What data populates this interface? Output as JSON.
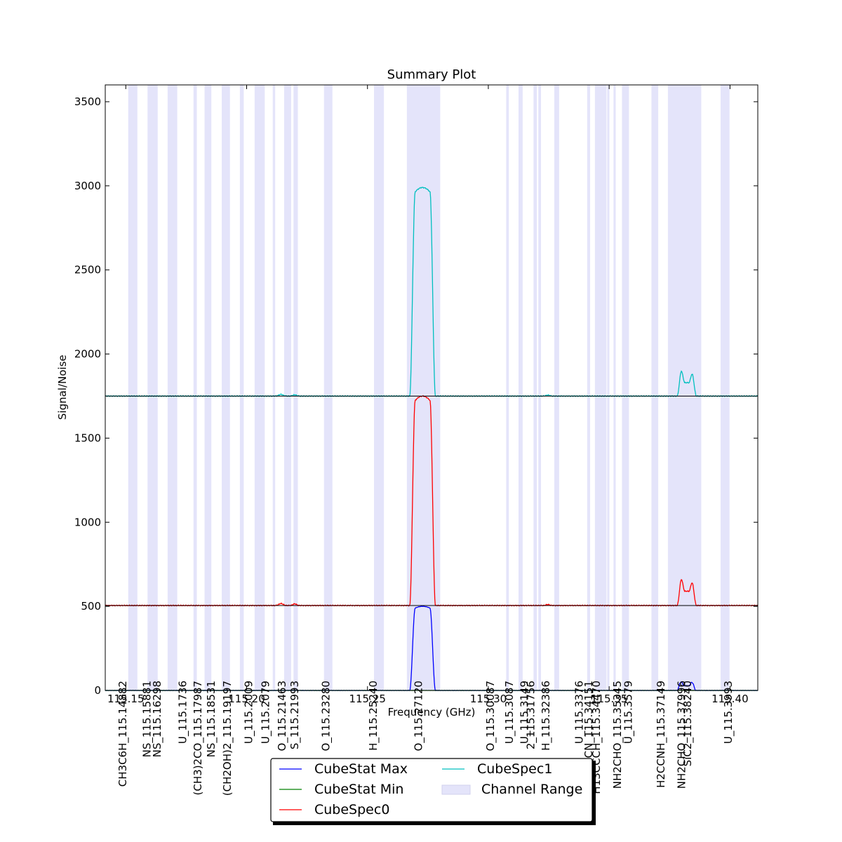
{
  "chart_data": {
    "type": "line",
    "title": "Summary Plot",
    "xlabel": "Frequency (GHz)",
    "ylabel": "Signal/Noise",
    "xlim": [
      115.1415,
      115.4115
    ],
    "ylim": [
      0,
      3600
    ],
    "grid": false,
    "yticks": [
      0,
      500,
      1000,
      1500,
      2000,
      2500,
      3000,
      3500
    ],
    "xticks": [
      {
        "value": 115.15,
        "label": "115.15"
      },
      {
        "value": 115.2,
        "label": "115.20"
      },
      {
        "value": 115.25,
        "label": "115.25"
      },
      {
        "value": 115.3,
        "label": "115.30"
      },
      {
        "value": 115.35,
        "label": "115.35"
      },
      {
        "value": 115.4,
        "label": "115.40"
      }
    ],
    "channel_ranges": [
      [
        115.151,
        115.1548
      ],
      [
        115.159,
        115.1632
      ],
      [
        115.1673,
        115.1713
      ],
      [
        115.178,
        115.1794
      ],
      [
        115.1826,
        115.1854
      ],
      [
        115.1897,
        115.1931
      ],
      [
        115.1972,
        115.1988
      ],
      [
        115.2033,
        115.2075
      ],
      [
        115.2108,
        115.2118
      ],
      [
        115.2155,
        115.2184
      ],
      [
        115.2194,
        115.2212
      ],
      [
        115.232,
        115.2355
      ],
      [
        115.2527,
        115.2568
      ],
      [
        115.2663,
        115.2801
      ],
      [
        115.3074,
        115.3085
      ],
      [
        115.3125,
        115.3142
      ],
      [
        115.3187,
        115.3201
      ],
      [
        115.3207,
        115.3218
      ],
      [
        115.3273,
        115.3293
      ],
      [
        115.3409,
        115.3421
      ],
      [
        115.3441,
        115.3489
      ],
      [
        115.3492,
        115.3501
      ],
      [
        115.3518,
        115.3527
      ],
      [
        115.3553,
        115.3582
      ],
      [
        115.3675,
        115.3703
      ],
      [
        115.3743,
        115.3881
      ],
      [
        115.3961,
        115.3998
      ]
    ],
    "line_labels": [
      {
        "freq": 115.14882,
        "label": "CH3C6H_115.14882"
      },
      {
        "freq": 115.15881,
        "label": "NS_115.15881"
      },
      {
        "freq": 115.16298,
        "label": "NS_115.16298"
      },
      {
        "freq": 115.1736,
        "label": "U_115.1736"
      },
      {
        "freq": 115.17987,
        "label": "(CH3)2CO_115.17987"
      },
      {
        "freq": 115.18531,
        "label": "NS_115.18531"
      },
      {
        "freq": 115.19197,
        "label": "(CH2OH)2_115.19197"
      },
      {
        "freq": 115.2009,
        "label": "U_115.2009"
      },
      {
        "freq": 115.2079,
        "label": "U_115.2079"
      },
      {
        "freq": 115.21463,
        "label": "O_115.21463"
      },
      {
        "freq": 115.21993,
        "label": "S_115.21993"
      },
      {
        "freq": 115.2328,
        "label": "O_115.23280"
      },
      {
        "freq": 115.2524,
        "label": "H_115.25240"
      },
      {
        "freq": 115.2712,
        "label": "O_115.27120"
      },
      {
        "freq": 115.30087,
        "label": "O_115.30087"
      },
      {
        "freq": 115.3087,
        "label": "U_115.3087"
      },
      {
        "freq": 115.3149,
        "label": "U_115.3149"
      },
      {
        "freq": 115.31756,
        "label": "2_115.31756"
      },
      {
        "freq": 115.32386,
        "label": "H_115.32386"
      },
      {
        "freq": 115.3376,
        "label": "U_115.3376"
      },
      {
        "freq": 115.34151,
        "label": "CH3CH2CN_115.34151"
      },
      {
        "freq": 115.3447,
        "label": "H13CCCH_115.34470"
      },
      {
        "freq": 115.35345,
        "label": "NH2CHO_115.35345"
      },
      {
        "freq": 115.3579,
        "label": "U_115.3579"
      },
      {
        "freq": 115.37149,
        "label": "H2CCNH_115.37149"
      },
      {
        "freq": 115.37996,
        "label": "NH2CHO_115.37996"
      },
      {
        "freq": 115.3824,
        "label": "SiC2_115.38240"
      },
      {
        "freq": 115.3993,
        "label": "U_115.3993"
      }
    ],
    "series": [
      {
        "name": "CubeStat Max",
        "color": "#0000ff",
        "offset": 0,
        "baseline_noise": 1,
        "wiggles": [],
        "peaks": [
          {
            "center": 115.2728,
            "halfwidth": 0.0042,
            "edge": 0.0011,
            "height": 500
          },
          {
            "center": 115.3796,
            "halfwidth": 0.0008,
            "edge": 0.0006,
            "height": 45
          },
          {
            "center": 115.3844,
            "halfwidth": 0.0008,
            "edge": 0.0006,
            "height": 42
          },
          {
            "center": 115.382,
            "halfwidth": 0.0018,
            "edge": 0.001,
            "height": 28
          }
        ]
      },
      {
        "name": "CubeStat Min",
        "color": "#008000",
        "offset": 0,
        "baseline_noise": 0.5,
        "wiggles": [],
        "peaks": []
      },
      {
        "name": "CubeSpec0",
        "color": "#ff0000",
        "offset": 505,
        "baseline_noise": 3,
        "wiggles": [
          {
            "center": 115.2142,
            "width": 0.0012,
            "height": 12
          },
          {
            "center": 115.2199,
            "width": 0.001,
            "height": 10
          },
          {
            "center": 115.3246,
            "width": 0.001,
            "height": 6
          }
        ],
        "peaks": [
          {
            "center": 115.2728,
            "halfwidth": 0.0042,
            "edge": 0.0011,
            "height": 1245
          },
          {
            "center": 115.3797,
            "halfwidth": 0.0008,
            "edge": 0.0008,
            "height": 125
          },
          {
            "center": 115.3845,
            "halfwidth": 0.0008,
            "edge": 0.0008,
            "height": 115
          },
          {
            "center": 115.382,
            "halfwidth": 0.002,
            "edge": 0.0012,
            "height": 85
          }
        ]
      },
      {
        "name": "CubeSpec1",
        "color": "#00bfbf",
        "offset": 1750,
        "baseline_noise": 3,
        "wiggles": [
          {
            "center": 115.2142,
            "width": 0.0012,
            "height": 10
          },
          {
            "center": 115.2199,
            "width": 0.001,
            "height": 8
          },
          {
            "center": 115.3246,
            "width": 0.001,
            "height": 6
          }
        ],
        "peaks": [
          {
            "center": 115.2728,
            "halfwidth": 0.0042,
            "edge": 0.0011,
            "height": 1240
          },
          {
            "center": 115.3797,
            "halfwidth": 0.0008,
            "edge": 0.0008,
            "height": 120
          },
          {
            "center": 115.3845,
            "halfwidth": 0.0008,
            "edge": 0.0008,
            "height": 112
          },
          {
            "center": 115.382,
            "halfwidth": 0.002,
            "edge": 0.0012,
            "height": 80
          }
        ]
      }
    ],
    "reference_lines": [
      505,
      1750
    ],
    "legend": {
      "placement": "bottom-center",
      "items": [
        {
          "label": "CubeStat Max",
          "kind": "line",
          "color": "#0000ff"
        },
        {
          "label": "CubeStat Min",
          "kind": "line",
          "color": "#008000"
        },
        {
          "label": "CubeSpec0",
          "kind": "line",
          "color": "#ff0000"
        },
        {
          "label": "CubeSpec1",
          "kind": "line",
          "color": "#00bfbf"
        },
        {
          "label": "Channel Range",
          "kind": "patch",
          "color": "#e4e4fa"
        }
      ]
    }
  }
}
